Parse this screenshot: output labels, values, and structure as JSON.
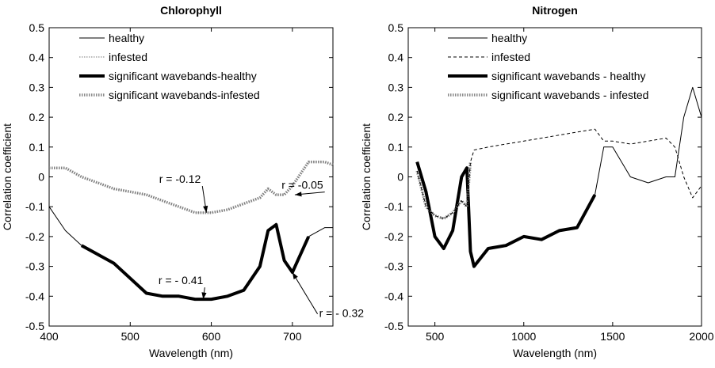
{
  "chart_data": [
    {
      "type": "line",
      "title": "Chlorophyll",
      "xlabel": "Wavelength (nm)",
      "ylabel": "Correlation coefficient",
      "xlim": [
        400,
        750
      ],
      "xticks": [
        400,
        500,
        600,
        700
      ],
      "ylim": [
        -0.5,
        0.5
      ],
      "yticks": [
        -0.5,
        -0.4,
        -0.3,
        -0.2,
        -0.1,
        0,
        0.1,
        0.2,
        0.3,
        0.4,
        0.5
      ],
      "x": [
        400,
        420,
        440,
        460,
        480,
        500,
        520,
        540,
        560,
        580,
        600,
        620,
        640,
        660,
        670,
        680,
        690,
        700,
        720,
        740,
        750
      ],
      "series": [
        {
          "name": "healthy",
          "color": "#000000",
          "style": "solid",
          "linewidth": 1,
          "values": [
            -0.1,
            -0.18,
            -0.23,
            -0.26,
            -0.29,
            -0.34,
            -0.39,
            -0.4,
            -0.4,
            -0.41,
            -0.41,
            -0.4,
            -0.38,
            -0.3,
            -0.18,
            -0.16,
            -0.28,
            -0.32,
            -0.2,
            -0.17,
            -0.17
          ]
        },
        {
          "name": "infested",
          "color": "#777777",
          "style": "dotted",
          "linewidth": 1,
          "values": [
            0.03,
            0.03,
            0.0,
            -0.02,
            -0.04,
            -0.05,
            -0.06,
            -0.08,
            -0.1,
            -0.12,
            -0.12,
            -0.11,
            -0.09,
            -0.07,
            -0.04,
            -0.06,
            -0.06,
            -0.03,
            0.05,
            0.05,
            0.04
          ]
        },
        {
          "name": "significant wavebands-healthy",
          "color": "#000000",
          "style": "solid",
          "linewidth": 4,
          "values": [
            null,
            null,
            -0.23,
            -0.26,
            -0.29,
            -0.34,
            -0.39,
            -0.4,
            -0.4,
            -0.41,
            -0.41,
            -0.4,
            -0.38,
            -0.3,
            -0.18,
            -0.16,
            -0.28,
            -0.32,
            -0.2,
            null,
            null
          ]
        },
        {
          "name": "significant wavebands-infested",
          "color": "#888888",
          "style": "dotted",
          "linewidth": 3.5,
          "values": [
            0.03,
            0.03,
            0.0,
            -0.02,
            -0.04,
            -0.05,
            -0.06,
            -0.08,
            -0.1,
            -0.12,
            -0.12,
            -0.11,
            -0.09,
            -0.07,
            -0.04,
            -0.06,
            -0.06,
            -0.03,
            0.05,
            0.05,
            0.04
          ]
        }
      ],
      "annotations": [
        "r = -0.12",
        "r = -0.05",
        "r = - 0.41",
        "r = - 0.32"
      ]
    },
    {
      "type": "line",
      "title": "Nitrogen",
      "xlabel": "Wavelength (nm)",
      "ylabel": "Correlation coefficient",
      "xlim": [
        350,
        2000
      ],
      "xticks": [
        500,
        1000,
        1500,
        2000
      ],
      "ylim": [
        -0.5,
        0.5
      ],
      "yticks": [
        -0.5,
        -0.4,
        -0.3,
        -0.2,
        -0.1,
        0,
        0.1,
        0.2,
        0.3,
        0.4,
        0.5
      ],
      "x": [
        400,
        450,
        500,
        550,
        600,
        650,
        680,
        700,
        720,
        800,
        900,
        1000,
        1100,
        1200,
        1300,
        1400,
        1450,
        1500,
        1600,
        1700,
        1800,
        1850,
        1900,
        1950,
        2000
      ],
      "series": [
        {
          "name": "healthy",
          "color": "#000000",
          "style": "solid",
          "linewidth": 1,
          "values": [
            0.05,
            -0.05,
            -0.2,
            -0.24,
            -0.18,
            0.0,
            0.03,
            -0.25,
            -0.3,
            -0.24,
            -0.23,
            -0.2,
            -0.21,
            -0.18,
            -0.17,
            -0.06,
            0.1,
            0.1,
            0.0,
            -0.02,
            0.0,
            0.0,
            0.2,
            0.3,
            0.2
          ]
        },
        {
          "name": "infested",
          "color": "#000000",
          "style": "dashed",
          "linewidth": 1,
          "values": [
            0.02,
            -0.1,
            -0.13,
            -0.14,
            -0.12,
            -0.08,
            -0.1,
            0.05,
            0.09,
            0.1,
            0.11,
            0.12,
            0.13,
            0.14,
            0.15,
            0.16,
            0.12,
            0.12,
            0.11,
            0.12,
            0.13,
            0.1,
            0.0,
            -0.07,
            -0.03
          ]
        },
        {
          "name": "significant wavebands - healthy",
          "color": "#000000",
          "style": "solid",
          "linewidth": 4,
          "values": [
            0.05,
            -0.05,
            -0.2,
            -0.24,
            -0.18,
            0.0,
            0.03,
            -0.25,
            -0.3,
            -0.24,
            -0.23,
            -0.2,
            -0.21,
            -0.18,
            -0.17,
            -0.06,
            null,
            null,
            null,
            null,
            null,
            null,
            null,
            null,
            null
          ]
        },
        {
          "name": "significant wavebands - infested",
          "color": "#888888",
          "style": "dotted",
          "linewidth": 3.5,
          "values": [
            0.02,
            -0.1,
            -0.13,
            -0.14,
            -0.12,
            -0.08,
            -0.1,
            0.05,
            null,
            null,
            null,
            null,
            null,
            null,
            null,
            null,
            null,
            null,
            null,
            null,
            null,
            null,
            null,
            null,
            null
          ]
        }
      ]
    }
  ]
}
